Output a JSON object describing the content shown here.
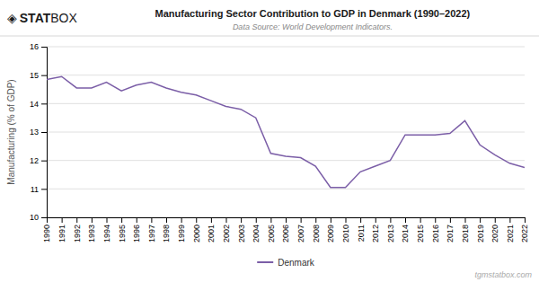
{
  "chart_data": {
    "type": "line",
    "title": "Manufacturing Sector Contribution to GDP in Denmark (1990–2022)",
    "subtitle": "Data Source: World Development Indicators.",
    "y_label": "Manufacturing (% of GDP)",
    "annotations": [
      "◈",
      "STAT",
      "BOX",
      "tgmstatbox.com"
    ],
    "x": [
      1990,
      1991,
      1992,
      1993,
      1994,
      1995,
      1996,
      1997,
      1998,
      1999,
      2000,
      2001,
      2002,
      2003,
      2004,
      2005,
      2006,
      2007,
      2008,
      2009,
      2010,
      2011,
      2012,
      2013,
      2014,
      2015,
      2016,
      2017,
      2018,
      2019,
      2020,
      2021,
      2022
    ],
    "series": [
      {
        "name": "Denmark",
        "color": "#7b5ea7",
        "values": [
          14.85,
          14.95,
          14.55,
          14.55,
          14.75,
          14.45,
          14.65,
          14.75,
          14.55,
          14.4,
          14.3,
          14.1,
          13.9,
          13.8,
          13.5,
          12.25,
          12.15,
          12.1,
          11.8,
          11.05,
          11.05,
          11.6,
          11.8,
          12.0,
          12.9,
          12.9,
          12.9,
          12.95,
          13.4,
          12.55,
          12.2,
          11.9,
          11.75
        ]
      }
    ],
    "xlim": [
      1990,
      2022
    ],
    "xticks": [
      1990,
      1991,
      1992,
      1993,
      1994,
      1995,
      1996,
      1997,
      1998,
      1999,
      2000,
      2001,
      2002,
      2003,
      2004,
      2005,
      2006,
      2007,
      2008,
      2009,
      2010,
      2011,
      2012,
      2013,
      2014,
      2015,
      2016,
      2017,
      2018,
      2019,
      2020,
      2021,
      2022
    ],
    "ylim": [
      10,
      16
    ],
    "yticks": [
      10,
      11,
      12,
      13,
      14,
      15,
      16
    ],
    "grid": true,
    "legend": "bottom"
  }
}
